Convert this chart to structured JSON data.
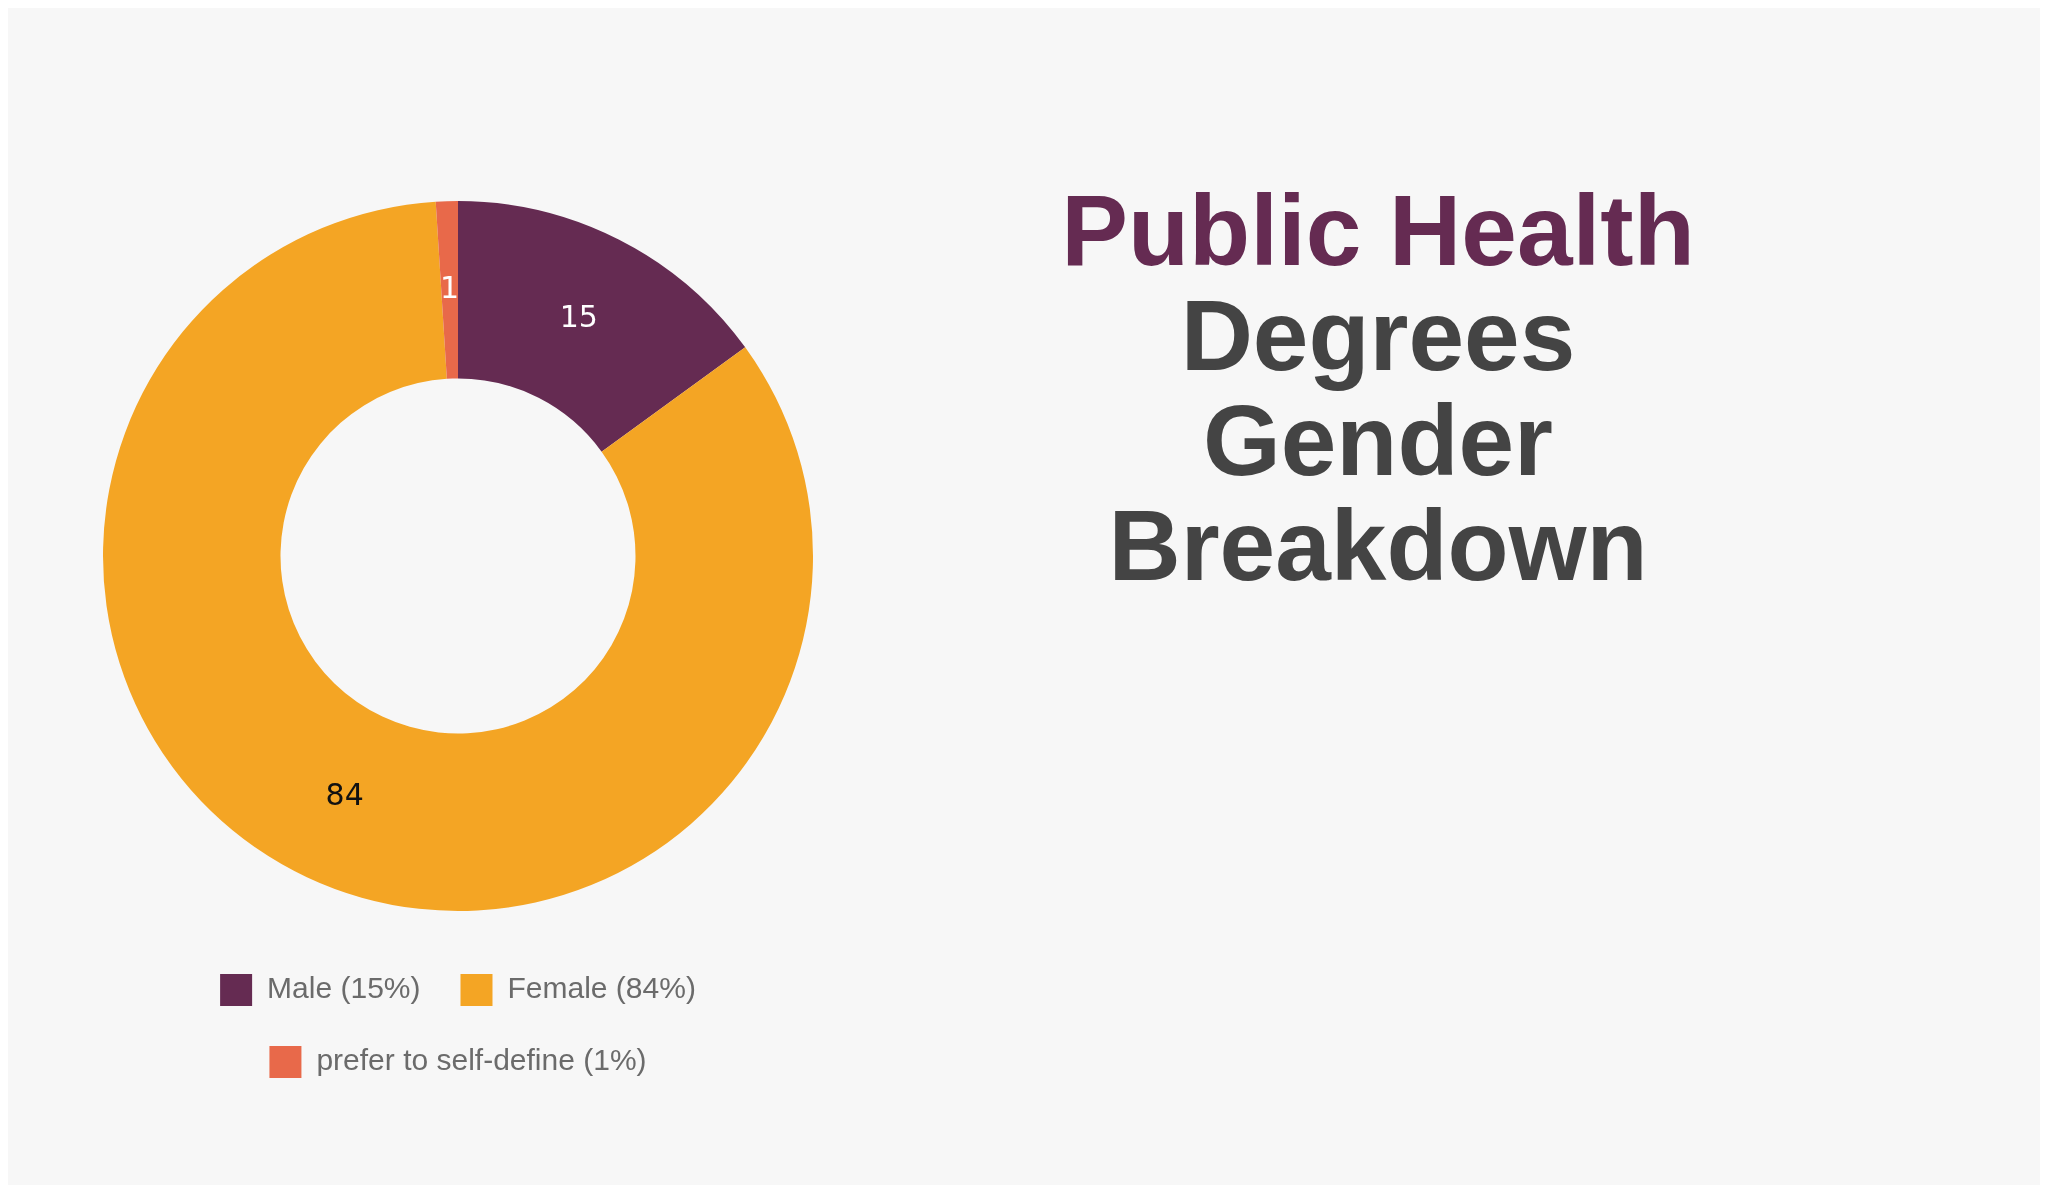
{
  "chart_data": {
    "type": "donut",
    "title": "Public Health Degrees Gender Breakdown",
    "categories": [
      "Male (15%)",
      "Female (84%)",
      "prefer to self-define (1%)"
    ],
    "values": [
      15,
      84,
      1
    ],
    "colors": [
      "#652b52",
      "#f4a524",
      "#e8694a"
    ],
    "data_labels": true,
    "legend": "bottom"
  }
}
